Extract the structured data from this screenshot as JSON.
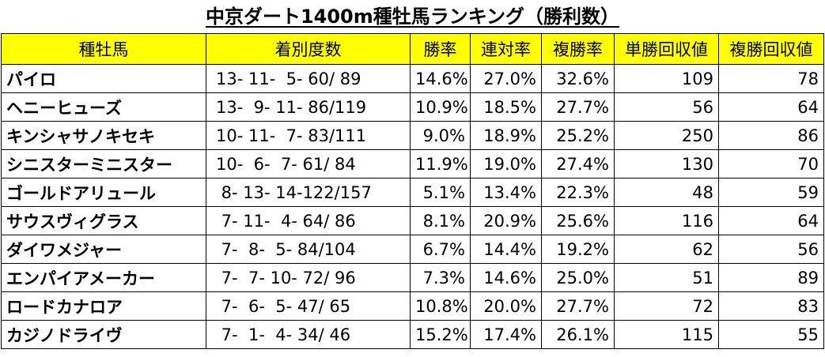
{
  "title": "中京ダート1400m種牡馬ランキング（勝利数）",
  "table": {
    "header": [
      "種牡馬",
      "着別度数",
      "勝率",
      "連対率",
      "複勝率",
      "単勝回収値",
      "複勝回収値"
    ],
    "rows": [
      [
        "パイロ",
        "13- 11-  5- 60/ 89",
        "14.6%",
        "27.0%",
        "32.6%",
        "109",
        "78"
      ],
      [
        "ヘニーヒューズ",
        "13-  9- 11- 86/119",
        "10.9%",
        "18.5%",
        "27.7%",
        "56",
        "64"
      ],
      [
        "キンシャサノキセキ",
        "10- 11-  7- 83/111",
        "9.0%",
        "18.9%",
        "25.2%",
        "250",
        "86"
      ],
      [
        "シニスターミニスター",
        "10-  6-  7- 61/ 84",
        "11.9%",
        "19.0%",
        "27.4%",
        "130",
        "70"
      ],
      [
        "ゴールドアリュール",
        " 8- 13- 14-122/157",
        "5.1%",
        "13.4%",
        "22.3%",
        "48",
        "59"
      ],
      [
        "サウスヴィグラス",
        " 7- 11-  4- 64/ 86",
        "8.1%",
        "20.9%",
        "25.6%",
        "116",
        "64"
      ],
      [
        "ダイワメジャー",
        " 7-  8-  5- 84/104",
        "6.7%",
        "14.4%",
        "19.2%",
        "62",
        "56"
      ],
      [
        "エンパイアメーカー",
        " 7-  7- 10- 72/ 96",
        "7.3%",
        "14.6%",
        "25.0%",
        "51",
        "89"
      ],
      [
        "ロードカナロア",
        " 7-  6-  5- 47/ 65",
        "10.8%",
        "20.0%",
        "27.7%",
        "72",
        "83"
      ],
      [
        "カジノドライヴ",
        " 7-  1-  4- 34/ 46",
        "15.2%",
        "17.4%",
        "26.1%",
        "115",
        "55"
      ]
    ]
  }
}
